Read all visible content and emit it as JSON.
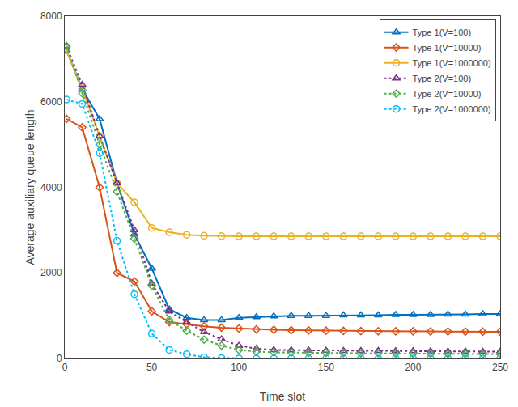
{
  "chart_data": {
    "type": "line",
    "xlabel": "Time slot",
    "ylabel": "Average auxiliary queue length",
    "x": [
      1,
      10,
      20,
      30,
      40,
      50,
      60,
      70,
      80,
      90,
      100,
      110,
      120,
      130,
      140,
      150,
      160,
      170,
      180,
      190,
      200,
      210,
      220,
      230,
      240,
      250
    ],
    "xlim": [
      0,
      250
    ],
    "ylim": [
      0,
      8000
    ],
    "xticks": [
      0,
      50,
      100,
      150,
      200,
      250
    ],
    "yticks": [
      0,
      2000,
      4000,
      6000,
      8000
    ],
    "grid": false,
    "legend": "upper right",
    "series": [
      {
        "name": "Type 1(V=100)",
        "color": "#0070C0",
        "line_style": "solid",
        "marker": "triangle",
        "values": [
          7200,
          6300,
          5600,
          4100,
          2900,
          2100,
          1150,
          950,
          900,
          900,
          950,
          970,
          990,
          1000,
          1000,
          1000,
          1010,
          1010,
          1010,
          1020,
          1020,
          1020,
          1030,
          1030,
          1040,
          1040
        ]
      },
      {
        "name": "Type 1(V=10000)",
        "color": "#D95319",
        "line_style": "solid",
        "marker": "diamond",
        "values": [
          5600,
          5400,
          4000,
          2000,
          1800,
          1100,
          850,
          800,
          750,
          720,
          700,
          680,
          670,
          660,
          655,
          650,
          645,
          640,
          638,
          636,
          634,
          632,
          630,
          628,
          626,
          624
        ]
      },
      {
        "name": "Type 1(V=1000000)",
        "color": "#EDB120",
        "line_style": "solid",
        "marker": "circle",
        "values": [
          7200,
          6300,
          5200,
          4100,
          3650,
          3050,
          2950,
          2890,
          2870,
          2860,
          2855,
          2855,
          2855,
          2855,
          2855,
          2855,
          2855,
          2855,
          2855,
          2855,
          2855,
          2855,
          2855,
          2855,
          2855,
          2855
        ]
      },
      {
        "name": "Type 2(V=100)",
        "color": "#7B2D8B",
        "line_style": "dotted",
        "marker": "triangle",
        "values": [
          7300,
          6400,
          5200,
          4100,
          3000,
          1750,
          1100,
          850,
          620,
          450,
          300,
          230,
          200,
          195,
          190,
          185,
          182,
          180,
          178,
          175,
          173,
          170,
          168,
          165,
          163,
          160
        ]
      },
      {
        "name": "Type 2(V=10000)",
        "color": "#4DAF4A",
        "line_style": "dotted",
        "marker": "diamond",
        "values": [
          7300,
          6200,
          5000,
          3900,
          2800,
          1700,
          900,
          650,
          440,
          300,
          200,
          160,
          145,
          138,
          132,
          128,
          124,
          120,
          118,
          115,
          112,
          110,
          108,
          106,
          104,
          102
        ]
      },
      {
        "name": "Type 2(V=1000000)",
        "color": "#00BFFF",
        "line_style": "dotted",
        "marker": "circle",
        "values": [
          6050,
          5950,
          4800,
          2750,
          1500,
          580,
          200,
          100,
          30,
          10,
          2,
          0,
          0,
          0,
          0,
          0,
          0,
          0,
          0,
          0,
          0,
          0,
          0,
          0,
          0,
          0
        ]
      }
    ]
  }
}
